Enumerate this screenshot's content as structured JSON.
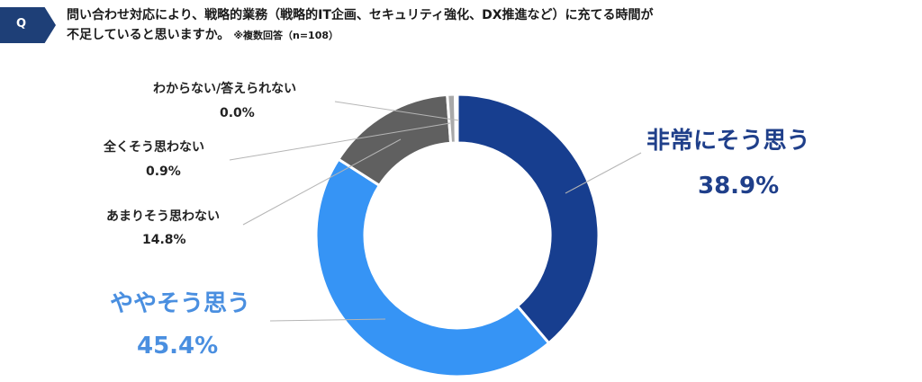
{
  "header": {
    "badge": "Q",
    "question_line1": "問い合わせ対応により、戦略的業務（戦略的IT企画、セキュリティ強化、DX推進など）に充てる時間が",
    "question_line2": "不足していると思いますか。",
    "note": "※複数回答（n=108）"
  },
  "chart_data": {
    "type": "pie",
    "variant": "donut",
    "start_angle_deg": 0,
    "direction": "clockwise",
    "slices": [
      {
        "label": "非常にそう思う",
        "value": 38.9,
        "value_label": "38.9%",
        "color": "#173e8f"
      },
      {
        "label": "ややそう思う",
        "value": 45.4,
        "value_label": "45.4%",
        "color": "#3694f5"
      },
      {
        "label": "あまりそう思わない",
        "value": 14.8,
        "value_label": "14.8%",
        "color": "#606060"
      },
      {
        "label": "全くそう思わない",
        "value": 0.9,
        "value_label": "0.9%",
        "color": "#a9a9a9"
      },
      {
        "label": "わからない/答えられない",
        "value": 0.0,
        "value_label": "0.0%",
        "color": "#d0d0d0"
      }
    ]
  }
}
